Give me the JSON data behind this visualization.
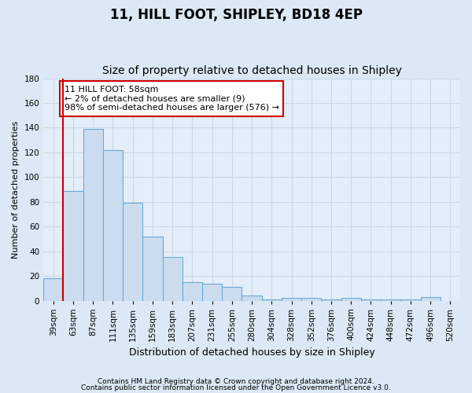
{
  "title1": "11, HILL FOOT, SHIPLEY, BD18 4EP",
  "title2": "Size of property relative to detached houses in Shipley",
  "xlabel": "Distribution of detached houses by size in Shipley",
  "ylabel": "Number of detached properties",
  "categories": [
    "39sqm",
    "63sqm",
    "87sqm",
    "111sqm",
    "135sqm",
    "159sqm",
    "183sqm",
    "207sqm",
    "231sqm",
    "255sqm",
    "280sqm",
    "304sqm",
    "328sqm",
    "352sqm",
    "376sqm",
    "400sqm",
    "424sqm",
    "448sqm",
    "472sqm",
    "496sqm",
    "520sqm"
  ],
  "values": [
    18,
    89,
    139,
    122,
    79,
    52,
    35,
    15,
    14,
    11,
    4,
    1,
    2,
    2,
    1,
    2,
    1,
    1,
    1,
    3,
    0
  ],
  "bar_color": "#ccdcef",
  "bar_edge_color": "#6aaad4",
  "ylim": [
    0,
    180
  ],
  "yticks": [
    0,
    20,
    40,
    60,
    80,
    100,
    120,
    140,
    160,
    180
  ],
  "highlight_line_color": "#cc0000",
  "annotation_text": "11 HILL FOOT: 58sqm\n← 2% of detached houses are smaller (9)\n98% of semi-detached houses are larger (576) →",
  "annotation_box_color": "#ffffff",
  "annotation_box_edge": "#cc0000",
  "footer1": "Contains HM Land Registry data © Crown copyright and database right 2024.",
  "footer2": "Contains public sector information licensed under the Open Government Licence v3.0.",
  "bg_color": "#dce8f5",
  "plot_bg_color": "#e4eef8",
  "grid_color": "#c8d8e8",
  "title1_fontsize": 12,
  "title2_fontsize": 10,
  "xlabel_fontsize": 9,
  "ylabel_fontsize": 8,
  "tick_fontsize": 7.5,
  "footer_fontsize": 6.5,
  "annot_fontsize": 8
}
